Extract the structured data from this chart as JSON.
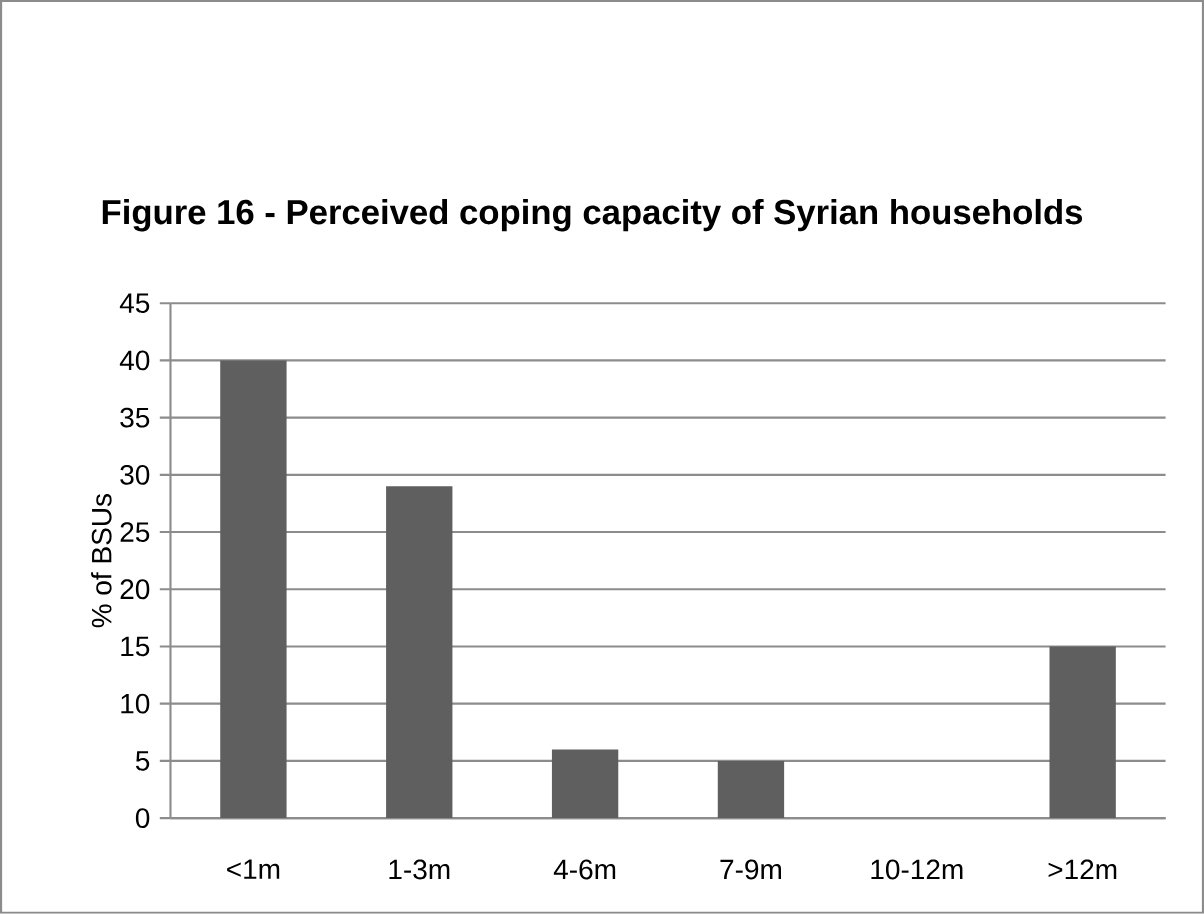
{
  "chart_data": {
    "type": "bar",
    "title": "Figure 16 - Perceived coping capacity of Syrian households",
    "ylabel": "% of BSUs",
    "categories": [
      "<1m",
      "1-3m",
      "4-6m",
      "7-9m",
      "10-12m",
      ">12m"
    ],
    "values": [
      40,
      29,
      6,
      5,
      0,
      15
    ],
    "color": "#5f5f5f",
    "ylim": [
      0,
      45
    ],
    "yticks": [
      0,
      5,
      10,
      15,
      20,
      25,
      30,
      35,
      40,
      45
    ],
    "grid": "y"
  }
}
